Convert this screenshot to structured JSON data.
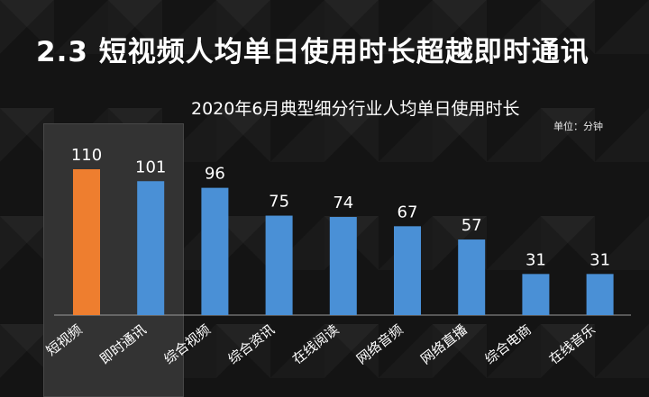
{
  "page": {
    "title": "2.3 短视频人均单日使用时长超越即时通讯"
  },
  "chart_data": {
    "type": "bar",
    "title": "2020年6月典型细分行业人均单日使用时长",
    "unit_label": "单位：分钟",
    "categories": [
      "短视频",
      "即时通讯",
      "综合视频",
      "综合资讯",
      "在线阅读",
      "网络音频",
      "网络直播",
      "综合电商",
      "在线音乐"
    ],
    "values": [
      110,
      101,
      96,
      75,
      74,
      67,
      57,
      31,
      31
    ],
    "highlight_index": 0,
    "highlight_group": [
      0,
      1
    ],
    "ylim": [
      0,
      110
    ],
    "grid": false,
    "legend": "none",
    "colors": {
      "highlight": "#EE7E2F",
      "default": "#4A90D6",
      "text": "#FFFFFF",
      "baseline": "#9A9A9A"
    }
  }
}
